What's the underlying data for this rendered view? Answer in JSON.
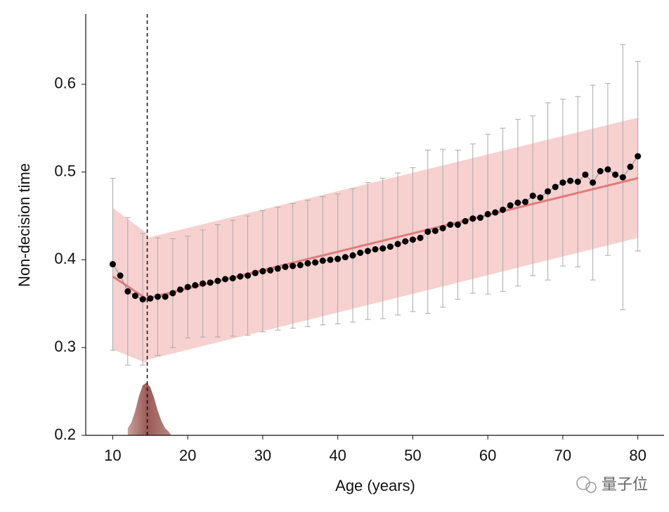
{
  "chart_data": {
    "type": "scatter",
    "x_label": "Age (years)",
    "y_label": "Non-decision time",
    "x": [
      10,
      11,
      12,
      13,
      14,
      15,
      16,
      17,
      18,
      19,
      20,
      21,
      22,
      23,
      24,
      25,
      26,
      27,
      28,
      29,
      30,
      31,
      32,
      33,
      34,
      35,
      36,
      37,
      38,
      39,
      40,
      41,
      42,
      43,
      44,
      45,
      46,
      47,
      48,
      49,
      50,
      51,
      52,
      53,
      54,
      55,
      56,
      57,
      58,
      59,
      60,
      61,
      62,
      63,
      64,
      65,
      66,
      67,
      68,
      69,
      70,
      71,
      72,
      73,
      74,
      75,
      76,
      77,
      78,
      79,
      80
    ],
    "series": [
      {
        "color": "#000000",
        "values": [
          0.395,
          0.382,
          0.364,
          0.359,
          0.355,
          0.356,
          0.358,
          0.358,
          0.362,
          0.366,
          0.369,
          0.371,
          0.373,
          0.374,
          0.376,
          0.378,
          0.379,
          0.381,
          0.382,
          0.385,
          0.387,
          0.388,
          0.39,
          0.392,
          0.393,
          0.394,
          0.396,
          0.397,
          0.399,
          0.4,
          0.401,
          0.403,
          0.405,
          0.408,
          0.41,
          0.412,
          0.413,
          0.415,
          0.418,
          0.421,
          0.423,
          0.425,
          0.432,
          0.433,
          0.436,
          0.44,
          0.44,
          0.444,
          0.447,
          0.448,
          0.452,
          0.454,
          0.457,
          0.462,
          0.465,
          0.466,
          0.473,
          0.471,
          0.478,
          0.483,
          0.488,
          0.49,
          0.489,
          0.497,
          0.488,
          0.501,
          0.503,
          0.497,
          0.494,
          0.506,
          0.518
        ],
        "errors": [
          0.098,
          null,
          0.084,
          null,
          0.075,
          null,
          0.067,
          null,
          0.062,
          null,
          0.058,
          null,
          0.061,
          null,
          0.064,
          null,
          0.066,
          null,
          0.068,
          null,
          0.069,
          null,
          0.07,
          null,
          0.071,
          null,
          0.072,
          null,
          0.073,
          null,
          0.074,
          null,
          0.076,
          null,
          0.078,
          null,
          0.08,
          null,
          0.081,
          null,
          0.082,
          null,
          0.093,
          null,
          0.09,
          null,
          0.085,
          null,
          0.085,
          null,
          0.091,
          null,
          0.093,
          null,
          0.095,
          null,
          0.091,
          null,
          0.101,
          null,
          0.095,
          null,
          0.097,
          null,
          0.111,
          null,
          0.098,
          null,
          0.151,
          null,
          0.108
        ]
      }
    ],
    "fit": [
      {
        "x": [
          10,
          14.6
        ],
        "y": [
          0.381,
          0.355
        ],
        "lower": [
          0.298,
          0.282
        ],
        "upper": [
          0.459,
          0.43
        ]
      },
      {
        "x": [
          14.6,
          80
        ],
        "y": [
          0.356,
          0.493
        ],
        "lower": [
          0.286,
          0.425
        ],
        "upper": [
          0.425,
          0.562
        ]
      }
    ],
    "fit_color": "#e07b7b",
    "band_color": "#f5c4c4",
    "breakpoint": 14.6,
    "density": {
      "x": [
        12,
        12.5,
        13,
        13.5,
        14,
        14.5,
        15,
        15.5,
        16,
        16.5,
        17,
        17.5,
        17.8
      ],
      "y": [
        0.208,
        0.215,
        0.228,
        0.245,
        0.257,
        0.26,
        0.255,
        0.243,
        0.228,
        0.216,
        0.208,
        0.204,
        0.2
      ]
    },
    "xlim": [
      6.4,
      83.5
    ],
    "ylim": [
      0.2,
      0.68
    ],
    "xticks": [
      10,
      20,
      30,
      40,
      50,
      60,
      70,
      80
    ],
    "yticks": [
      0.2,
      0.3,
      0.4,
      0.5,
      0.6
    ]
  },
  "watermark": "量子位"
}
